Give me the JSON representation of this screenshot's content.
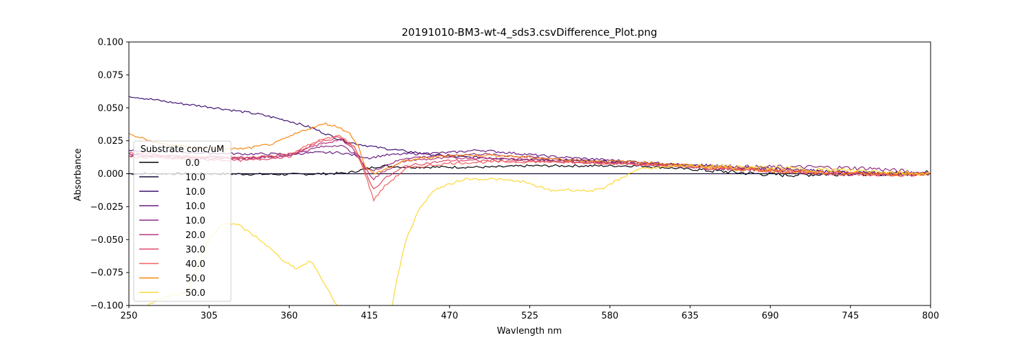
{
  "chart_data": {
    "type": "line",
    "title": "20191010-BM3-wt-4_sds3.csvDifference_Plot.png",
    "xlabel": "Wavlength nm",
    "ylabel": "Absorbance",
    "xlim": [
      250,
      800
    ],
    "ylim": [
      -0.1,
      0.1
    ],
    "xticks": [
      "250",
      "305",
      "360",
      "415",
      "470",
      "525",
      "580",
      "635",
      "690",
      "745",
      "800"
    ],
    "yticks": [
      "0.100",
      "0.075",
      "0.050",
      "0.025",
      "0.000",
      "−0.025",
      "−0.050",
      "−0.075",
      "−0.100"
    ],
    "grid": false,
    "legend": {
      "title": "Substrate conc/uM",
      "position": "lower-left"
    },
    "series": [
      {
        "name": "0.0",
        "color": "#000004",
        "x": [
          250,
          300,
          360,
          385,
          400,
          410,
          418,
          425,
          440,
          470,
          500,
          525,
          560,
          600,
          640,
          680,
          700,
          740,
          780,
          800
        ],
        "y": [
          0.0,
          0.0,
          -0.0005,
          0.0,
          0.0005,
          0.003,
          0.005,
          0.006,
          0.005,
          0.005,
          0.005,
          0.006,
          0.006,
          0.006,
          0.003,
          0.0,
          -0.001,
          0.0,
          0.0,
          0.001
        ]
      },
      {
        "name": "10.0",
        "color": "#140b35",
        "x": [
          250,
          400,
          600,
          800
        ],
        "y": [
          0.0,
          0.0,
          0.0,
          0.0
        ]
      },
      {
        "name": "10.0",
        "color": "#3b0f70",
        "x": [
          250,
          280,
          310,
          340,
          360,
          375,
          390,
          400,
          420,
          440,
          470,
          500,
          520,
          550,
          580,
          610,
          640,
          680,
          720,
          760,
          800
        ],
        "y": [
          0.059,
          0.054,
          0.05,
          0.045,
          0.04,
          0.035,
          0.028,
          0.024,
          0.02,
          0.017,
          0.013,
          0.012,
          0.011,
          0.01,
          0.009,
          0.008,
          0.006,
          0.004,
          0.002,
          0.0,
          0.0
        ]
      },
      {
        "name": "10.0",
        "color": "#651a80",
        "x": [
          250,
          290,
          330,
          360,
          380,
          395,
          405,
          415,
          425,
          440,
          470,
          490,
          510,
          540,
          570,
          600,
          640,
          680,
          720,
          760,
          800
        ],
        "y": [
          0.018,
          0.016,
          0.015,
          0.015,
          0.016,
          0.016,
          0.014,
          0.012,
          0.014,
          0.015,
          0.016,
          0.018,
          0.016,
          0.013,
          0.011,
          0.009,
          0.006,
          0.004,
          0.002,
          0.0,
          0.0
        ]
      },
      {
        "name": "10.0",
        "color": "#8c2981",
        "x": [
          250,
          290,
          330,
          360,
          380,
          395,
          405,
          412,
          418,
          425,
          440,
          470,
          490,
          520,
          560,
          600,
          640,
          680,
          720,
          760,
          800
        ],
        "y": [
          0.015,
          0.013,
          0.012,
          0.014,
          0.02,
          0.022,
          0.015,
          0.005,
          0.002,
          0.006,
          0.012,
          0.014,
          0.015,
          0.013,
          0.01,
          0.008,
          0.006,
          0.005,
          0.005,
          0.004,
          0.0
        ]
      },
      {
        "name": "20.0",
        "color": "#b5367a",
        "x": [
          250,
          290,
          330,
          360,
          380,
          395,
          405,
          412,
          418,
          425,
          440,
          470,
          500,
          540,
          580,
          620,
          660,
          700,
          740,
          780,
          800
        ],
        "y": [
          0.014,
          0.012,
          0.011,
          0.014,
          0.022,
          0.026,
          0.018,
          0.004,
          -0.004,
          0.002,
          0.01,
          0.012,
          0.012,
          0.01,
          0.008,
          0.006,
          0.004,
          0.002,
          0.0,
          0.0,
          0.0
        ]
      },
      {
        "name": "30.0",
        "color": "#de4968",
        "x": [
          250,
          290,
          330,
          360,
          380,
          395,
          405,
          412,
          418,
          425,
          440,
          470,
          500,
          540,
          580,
          620,
          660,
          700,
          740,
          780,
          800
        ],
        "y": [
          0.013,
          0.011,
          0.01,
          0.013,
          0.024,
          0.028,
          0.02,
          0.002,
          -0.012,
          -0.004,
          0.006,
          0.01,
          0.01,
          0.009,
          0.008,
          0.006,
          0.004,
          0.002,
          0.0,
          -0.001,
          0.0
        ]
      },
      {
        "name": "40.0",
        "color": "#f1605d",
        "x": [
          250,
          290,
          330,
          360,
          380,
          395,
          405,
          412,
          418,
          425,
          440,
          470,
          500,
          540,
          580,
          620,
          660,
          700,
          740,
          780,
          800
        ],
        "y": [
          0.016,
          0.013,
          0.012,
          0.015,
          0.025,
          0.029,
          0.02,
          0.0,
          -0.02,
          -0.01,
          0.004,
          0.008,
          0.009,
          0.009,
          0.008,
          0.006,
          0.004,
          0.002,
          0.0,
          -0.001,
          0.0
        ]
      },
      {
        "name": "50.0",
        "color": "#f8870e",
        "x": [
          250,
          270,
          300,
          330,
          350,
          370,
          385,
          395,
          402,
          408,
          412,
          418,
          425,
          440,
          470,
          500,
          530,
          560,
          600,
          640,
          680,
          720,
          760,
          800
        ],
        "y": [
          0.03,
          0.023,
          0.019,
          0.019,
          0.023,
          0.033,
          0.038,
          0.035,
          0.03,
          0.02,
          0.005,
          0.0,
          0.003,
          0.01,
          0.014,
          0.014,
          0.012,
          0.01,
          0.009,
          0.006,
          0.003,
          0.001,
          0.0,
          0.0
        ]
      },
      {
        "name": "50.0",
        "color": "#fcd832",
        "x": [
          250,
          270,
          290,
          305,
          315,
          325,
          340,
          355,
          365,
          375,
          385,
          395,
          400,
          428,
          432,
          440,
          450,
          460,
          480,
          500,
          520,
          540,
          550,
          565,
          575,
          580,
          600,
          640,
          700,
          760,
          800
        ],
        "y": [
          -0.11,
          -0.095,
          -0.09,
          -0.05,
          -0.037,
          -0.039,
          -0.05,
          -0.065,
          -0.072,
          -0.066,
          -0.085,
          -0.105,
          -0.12,
          -0.12,
          -0.09,
          -0.05,
          -0.025,
          -0.012,
          -0.004,
          -0.004,
          -0.006,
          -0.013,
          -0.012,
          -0.013,
          -0.012,
          -0.008,
          0.004,
          0.006,
          0.004,
          0.002,
          0.0
        ]
      }
    ]
  }
}
